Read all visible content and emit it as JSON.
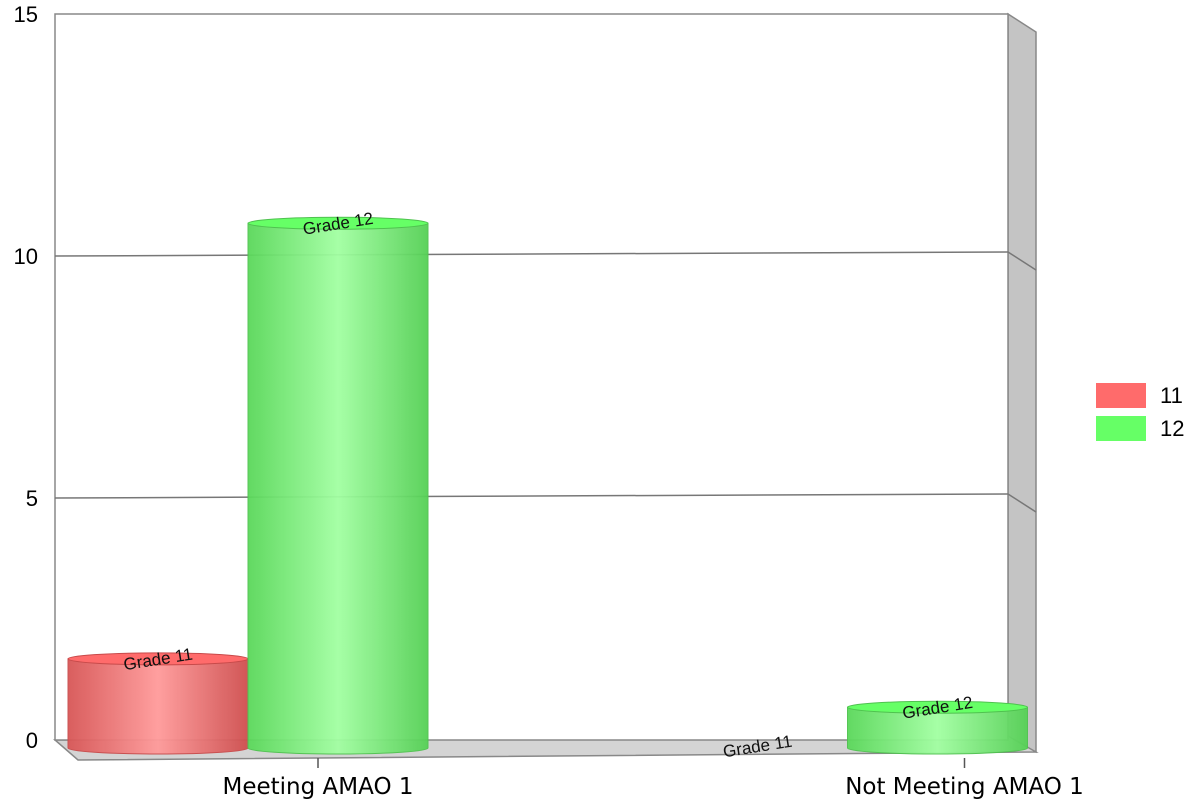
{
  "chart_data": {
    "type": "bar",
    "style": "3d-cylinder",
    "categories": [
      "Meeting AMAO 1",
      "Not Meeting AMAO 1"
    ],
    "series": [
      {
        "name": "11",
        "label": "Grade 11",
        "color": "#ff6b6b",
        "values": [
          1.8,
          0
        ]
      },
      {
        "name": "12",
        "label": "Grade 12",
        "color": "#66ff66",
        "values": [
          10.8,
          0.8
        ]
      }
    ],
    "ylim": [
      0,
      15
    ],
    "yticks": [
      0,
      5,
      10,
      15
    ],
    "grid": true,
    "legend": "right"
  }
}
